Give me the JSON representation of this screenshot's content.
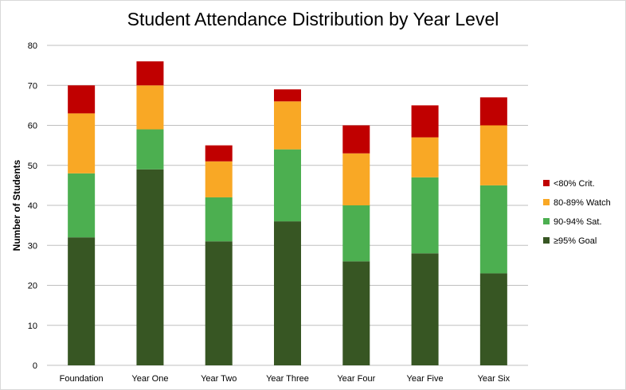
{
  "chart_data": {
    "type": "bar",
    "stacked": true,
    "title": "Student Attendance Distribution by Year Level",
    "xlabel": "",
    "ylabel": "Number of Students",
    "ylim": [
      0,
      80
    ],
    "yticks": [
      0,
      10,
      20,
      30,
      40,
      50,
      60,
      70,
      80
    ],
    "grid": true,
    "legend_position": "right",
    "categories": [
      "Foundation",
      "Year One",
      "Year Two",
      "Year Three",
      "Year Four",
      "Year Five",
      "Year Six"
    ],
    "series": [
      {
        "name": "≥95% Goal",
        "color": "#375623",
        "values": [
          32,
          49,
          31,
          36,
          26,
          28,
          23
        ]
      },
      {
        "name": "90-94% Sat.",
        "color": "#4caf50",
        "values": [
          16,
          10,
          11,
          18,
          14,
          19,
          22
        ]
      },
      {
        "name": "80-89% Watch",
        "color": "#f9a825",
        "values": [
          15,
          11,
          9,
          12,
          13,
          10,
          15
        ]
      },
      {
        "name": "<80% Crit.",
        "color": "#c00000",
        "values": [
          7,
          6,
          4,
          3,
          7,
          8,
          7
        ]
      }
    ]
  }
}
